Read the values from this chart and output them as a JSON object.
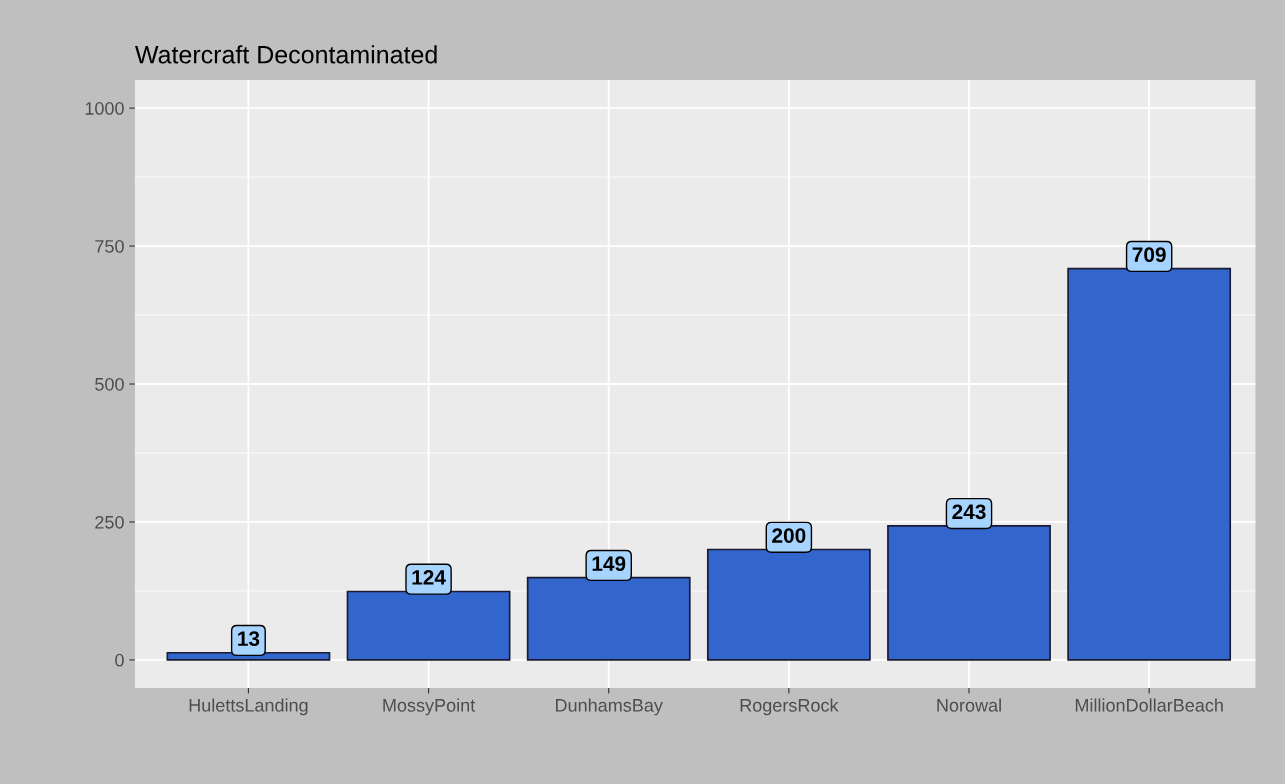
{
  "chart_data": {
    "type": "bar",
    "title": "Watercraft Decontaminated",
    "categories": [
      "HulettsLanding",
      "MossyPoint",
      "DunhamsBay",
      "RogersRock",
      "Norowal",
      "MillionDollarBeach"
    ],
    "values": [
      13,
      124,
      149,
      200,
      243,
      709
    ],
    "color": "#3366cc",
    "ylim": [
      -51,
      1051
    ],
    "yticks": [
      0,
      250,
      500,
      750,
      1000
    ],
    "grid": true,
    "data_labels": true
  }
}
